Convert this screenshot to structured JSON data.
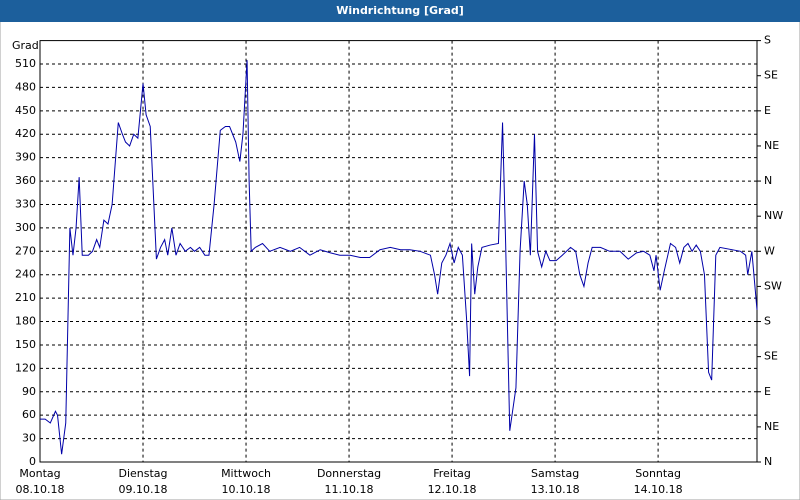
{
  "chart_data": {
    "type": "line",
    "title": "Windrichtung [Grad]",
    "y_label": "Grad",
    "x": [
      0,
      0.05,
      0.1,
      0.15,
      0.17,
      0.21,
      0.25,
      0.29,
      0.32,
      0.35,
      0.38,
      0.41,
      0.47,
      0.51,
      0.55,
      0.58,
      0.62,
      0.66,
      0.7,
      0.76,
      0.8,
      0.83,
      0.87,
      0.91,
      0.95,
      1.0,
      1.03,
      1.07,
      1.13,
      1.17,
      1.21,
      1.24,
      1.28,
      1.32,
      1.36,
      1.41,
      1.46,
      1.5,
      1.55,
      1.6,
      1.64,
      1.69,
      1.75,
      1.8,
      1.84,
      1.9,
      1.94,
      1.97,
      2.01,
      2.03,
      2.05,
      2.09,
      2.16,
      2.23,
      2.33,
      2.43,
      2.52,
      2.62,
      2.72,
      2.82,
      2.91,
      3.01,
      3.11,
      3.2,
      3.3,
      3.4,
      3.5,
      3.59,
      3.69,
      3.79,
      3.83,
      3.86,
      3.9,
      3.94,
      3.98,
      4.02,
      4.06,
      4.1,
      4.14,
      4.17,
      4.19,
      4.22,
      4.25,
      4.29,
      4.37,
      4.45,
      4.49,
      4.52,
      4.56,
      4.62,
      4.66,
      4.7,
      4.73,
      4.76,
      4.8,
      4.83,
      4.87,
      4.91,
      4.95,
      5.01,
      5.07,
      5.15,
      5.2,
      5.24,
      5.28,
      5.32,
      5.36,
      5.44,
      5.53,
      5.63,
      5.71,
      5.79,
      5.86,
      5.92,
      5.96,
      5.98,
      6.02,
      6.06,
      6.12,
      6.17,
      6.21,
      6.25,
      6.29,
      6.33,
      6.37,
      6.41,
      6.45,
      6.49,
      6.52,
      6.56,
      6.6,
      6.8,
      6.85,
      6.87,
      6.91,
      6.96
    ],
    "series": [
      {
        "name": "Windrichtung",
        "color": "#0000a8",
        "values": [
          55,
          55,
          50,
          65,
          60,
          10,
          50,
          300,
          265,
          300,
          365,
          265,
          265,
          270,
          285,
          275,
          310,
          305,
          330,
          435,
          420,
          410,
          405,
          420,
          415,
          485,
          445,
          430,
          260,
          275,
          285,
          265,
          300,
          265,
          280,
          270,
          275,
          270,
          275,
          265,
          265,
          330,
          425,
          430,
          430,
          410,
          385,
          420,
          515,
          360,
          270,
          275,
          280,
          270,
          275,
          270,
          275,
          265,
          272,
          268,
          265,
          265,
          262,
          262,
          272,
          275,
          272,
          272,
          270,
          265,
          240,
          215,
          255,
          265,
          280,
          255,
          275,
          265,
          185,
          110,
          280,
          215,
          250,
          275,
          278,
          280,
          435,
          280,
          40,
          95,
          270,
          360,
          330,
          265,
          420,
          270,
          250,
          270,
          258,
          258,
          265,
          275,
          270,
          240,
          225,
          255,
          275,
          275,
          270,
          270,
          260,
          268,
          270,
          265,
          245,
          265,
          220,
          245,
          280,
          275,
          255,
          275,
          280,
          270,
          278,
          270,
          240,
          115,
          105,
          265,
          275,
          270,
          265,
          240,
          270,
          195
        ]
      }
    ],
    "xlim": [
      0,
      6.96
    ],
    "xticks": [
      {
        "value": 0,
        "label": "Montag"
      },
      {
        "value": 1,
        "label": "Dienstag"
      },
      {
        "value": 2,
        "label": "Mittwoch"
      },
      {
        "value": 3,
        "label": "Donnerstag"
      },
      {
        "value": 4,
        "label": "Freitag"
      },
      {
        "value": 5,
        "label": "Samstag"
      },
      {
        "value": 6,
        "label": "Sonntag"
      }
    ],
    "xtick_dates": [
      "08.10.18",
      "09.10.18",
      "10.10.18",
      "11.10.18",
      "12.10.18",
      "13.10.18",
      "14.10.18"
    ],
    "ylim": [
      0,
      540
    ],
    "yticks": [
      0,
      30,
      60,
      90,
      120,
      150,
      180,
      210,
      240,
      270,
      300,
      330,
      360,
      390,
      420,
      450,
      480,
      510
    ],
    "y2lim": [
      0,
      540
    ],
    "y2ticks": [
      {
        "value": 0,
        "label": "N"
      },
      {
        "value": 45,
        "label": "NE"
      },
      {
        "value": 90,
        "label": "E"
      },
      {
        "value": 135,
        "label": "SE"
      },
      {
        "value": 180,
        "label": "S"
      },
      {
        "value": 225,
        "label": "SW"
      },
      {
        "value": 270,
        "label": "W"
      },
      {
        "value": 315,
        "label": "NW"
      },
      {
        "value": 360,
        "label": "N"
      },
      {
        "value": 405,
        "label": "NE"
      },
      {
        "value": 450,
        "label": "E"
      },
      {
        "value": 495,
        "label": "SE"
      },
      {
        "value": 540,
        "label": "S"
      }
    ],
    "grid": true
  }
}
